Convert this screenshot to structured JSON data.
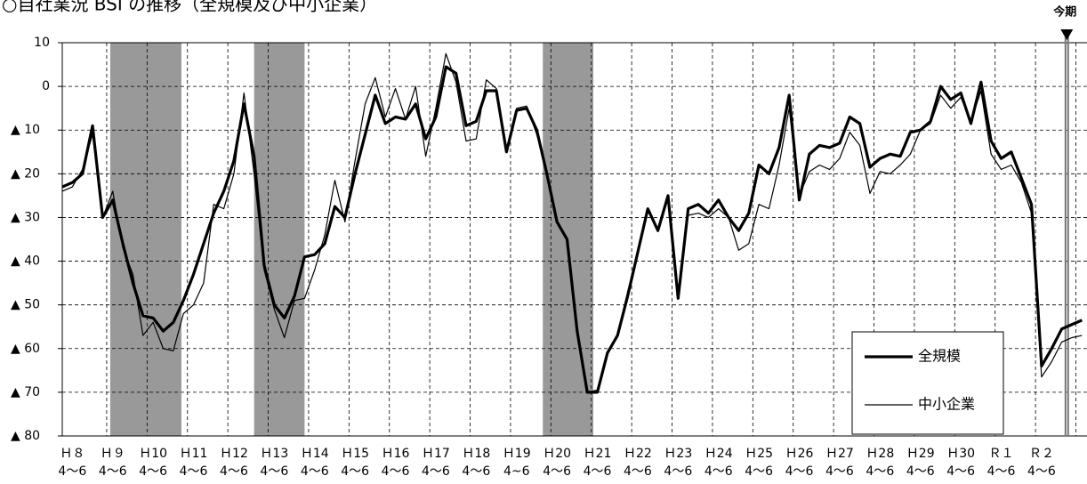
{
  "chart_data": {
    "type": "line",
    "title": "○自社業況 BSI の推移（全規模及び中小企業）",
    "x": [
      0,
      1,
      2,
      3,
      4,
      5,
      6,
      7,
      8,
      9,
      10,
      11,
      12,
      13,
      14,
      15,
      16,
      17,
      18,
      19,
      20,
      21,
      22,
      23,
      24,
      25,
      26,
      27,
      28,
      29,
      30,
      31,
      32,
      33,
      34,
      35,
      36,
      37,
      38,
      39,
      40,
      41,
      42,
      43,
      44,
      45,
      46,
      47,
      48,
      49,
      50,
      51,
      52,
      53,
      54,
      55,
      56,
      57,
      58,
      59,
      60,
      61,
      62,
      63,
      64,
      65,
      66,
      67,
      68,
      69,
      70,
      71,
      72,
      73,
      74,
      75,
      76,
      77,
      78,
      79,
      80,
      81,
      82,
      83,
      84,
      85,
      86,
      87,
      88,
      89,
      90,
      91,
      92,
      93,
      94,
      95,
      96,
      97,
      98,
      99,
      100,
      101
    ],
    "series": [
      {
        "name": "全規模",
        "color": "#000000",
        "width": 3.2,
        "values": [
          -23,
          -22,
          -20,
          -9,
          -30,
          -26,
          -36,
          -45,
          -52.5,
          -53,
          -56,
          -54,
          -49,
          -43,
          -36,
          -29,
          -24,
          -17,
          -4,
          -16,
          -41,
          -50,
          -53,
          -48,
          -39,
          -38.5,
          -36,
          -27.5,
          -30,
          -20,
          -11,
          -2,
          -8.5,
          -7,
          -7.5,
          -4,
          -12,
          -7,
          4.5,
          3,
          -9,
          -8,
          -1,
          -1,
          -15,
          -5.5,
          -5,
          -10,
          -20,
          -31,
          -35,
          -56,
          -70,
          -70,
          -61,
          -57,
          -48,
          -38,
          -28,
          -33,
          -25,
          -48.5,
          -28,
          -27,
          -29,
          -26,
          -30,
          -33,
          -29,
          -18,
          -20,
          -14,
          -2,
          -26,
          -15.5,
          -13.5,
          -14,
          -13,
          -7,
          -8.5,
          -18.5,
          -16.5,
          -15.5,
          -16,
          -10.5,
          -10,
          -8,
          0,
          -3,
          -1.5,
          -8.5,
          1,
          -12.5,
          -16.5,
          -15,
          -21,
          -27,
          -64,
          -60,
          -55.5,
          -54.5,
          -53.5
        ]
      },
      {
        "name": "中小企業",
        "color": "#000000",
        "width": 1.2,
        "values": [
          -24,
          -23,
          -19,
          -11,
          -30,
          -24,
          -37,
          -43,
          -57,
          -54,
          -60,
          -60.5,
          -52,
          -50,
          -45,
          -27,
          -28,
          -20,
          -1.5,
          -20,
          -42,
          -51,
          -57.5,
          -49,
          -48.5,
          -42,
          -34,
          -21.5,
          -31,
          -17,
          -4,
          2,
          -7,
          -0.5,
          -7.5,
          0,
          -16,
          -5,
          7.5,
          1,
          -12.5,
          -12,
          1.5,
          -0.5,
          -14.5,
          -5,
          -4.5,
          -11,
          -20,
          -31,
          -35,
          -56,
          -70,
          -69.5,
          -61,
          -57,
          -47,
          -38,
          -28,
          -33,
          -25,
          -48,
          -29.5,
          -29,
          -30,
          -28,
          -30,
          -37.5,
          -36,
          -27,
          -28,
          -18,
          -5,
          -25,
          -19.5,
          -18,
          -19,
          -16.5,
          -10.5,
          -13.5,
          -24.5,
          -19.5,
          -20,
          -18,
          -15.5,
          -10,
          -8.5,
          -2,
          -5,
          -2.5,
          -8,
          -1,
          -15.5,
          -19,
          -18,
          -22,
          -29,
          -66.5,
          -63,
          -58.5,
          -57.5,
          -57
        ]
      }
    ],
    "xlim": [
      0,
      101.5
    ],
    "xticks": [
      {
        "value": 1,
        "label": "Ｈ８"
      },
      {
        "value": 5,
        "label": "Ｈ９"
      },
      {
        "value": 9,
        "label": "Ｈ10"
      },
      {
        "value": 13,
        "label": "Ｈ11"
      },
      {
        "value": 17,
        "label": "Ｈ12"
      },
      {
        "value": 21,
        "label": "Ｈ13"
      },
      {
        "value": 25,
        "label": "Ｈ14"
      },
      {
        "value": 29,
        "label": "Ｈ15"
      },
      {
        "value": 33,
        "label": "Ｈ16"
      },
      {
        "value": 37,
        "label": "Ｈ17"
      },
      {
        "value": 41,
        "label": "Ｈ18"
      },
      {
        "value": 45,
        "label": "Ｈ19"
      },
      {
        "value": 49,
        "label": "Ｈ20"
      },
      {
        "value": 53,
        "label": "Ｈ21"
      },
      {
        "value": 57,
        "label": "Ｈ22"
      },
      {
        "value": 61,
        "label": "Ｈ23"
      },
      {
        "value": 65,
        "label": "Ｈ24"
      },
      {
        "value": 69,
        "label": "Ｈ25"
      },
      {
        "value": 73,
        "label": "Ｈ26"
      },
      {
        "value": 77,
        "label": "Ｈ27"
      },
      {
        "value": 81,
        "label": "Ｈ28"
      },
      {
        "value": 85,
        "label": "Ｈ29"
      },
      {
        "value": 89,
        "label": "Ｈ30"
      },
      {
        "value": 93,
        "label": "Ｒ１"
      },
      {
        "value": 97,
        "label": "Ｒ２"
      }
    ],
    "xtick_sublabels": [
      "4～6",
      "4～6",
      "4～6",
      "4～6",
      "4～6",
      "4～6",
      "4～6",
      "4～6",
      "4～6",
      "4～6",
      "4～6",
      "4~6",
      "4～6",
      "4～6",
      "4～6",
      "4～6",
      "4～6",
      "4～6",
      "4～6",
      "4～6",
      "4～6",
      "4～6",
      "4～6",
      "4～6",
      "4～6"
    ],
    "ylim": [
      -80,
      10
    ],
    "yticks": [
      10,
      0,
      {
        "value": -10,
        "label": "▲ 10"
      },
      {
        "value": -20,
        "label": "▲ 20"
      },
      {
        "value": -30,
        "label": "▲ 30"
      },
      {
        "value": -40,
        "label": "▲ 40"
      },
      {
        "value": -50,
        "label": "▲ 50"
      },
      {
        "value": -60,
        "label": "▲ 60"
      },
      {
        "value": -70,
        "label": "▲ 70"
      },
      {
        "value": -80,
        "label": "▲ 80"
      }
    ],
    "grid": true,
    "shaded_ranges": [
      [
        4.75,
        11.8
      ],
      [
        19,
        24
      ],
      [
        47.6,
        52.6
      ]
    ],
    "shade_color": "#999999",
    "current_period": {
      "label": "今期",
      "x": 99.5
    },
    "legend": "lower right"
  }
}
